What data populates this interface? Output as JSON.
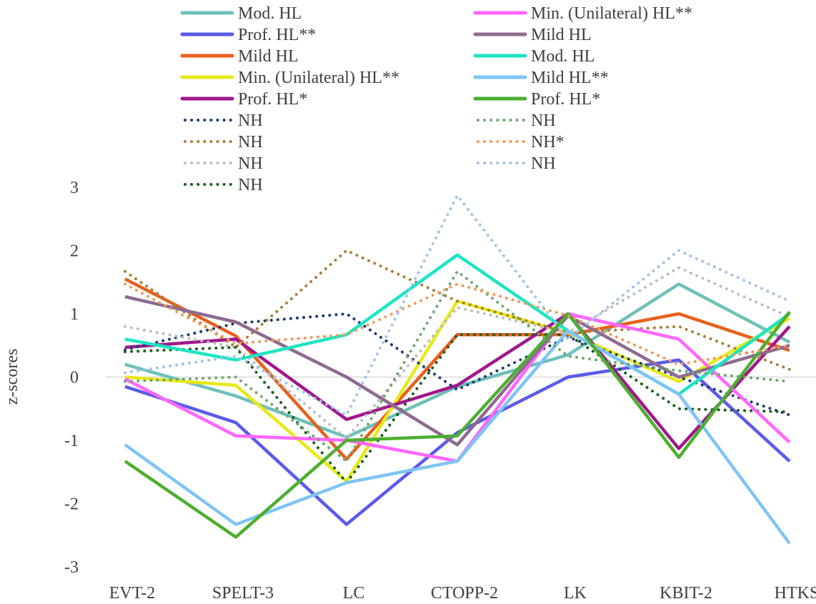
{
  "chart_data": {
    "type": "line",
    "title": "",
    "xlabel": "",
    "ylabel": "z-scores",
    "ylim": [
      -3,
      3
    ],
    "yticks": [
      "3",
      "2",
      "1",
      "0",
      "-1",
      "-2",
      "-3"
    ],
    "grid": false,
    "legend_position": "top",
    "categories": [
      "EVT-2",
      "SPELT-3",
      "LC",
      "CTOPP-2",
      "LK",
      "KBIT-2",
      "HTKS"
    ],
    "series": [
      {
        "name": "Mod. HL",
        "color": "#6FC0BA",
        "style": "solid",
        "values": [
          0.2,
          -0.3,
          -0.95,
          -0.15,
          0.35,
          1.47,
          0.55
        ]
      },
      {
        "name": "Prof. HL**",
        "color": "#5B5BE8",
        "style": "solid",
        "values": [
          -0.15,
          -0.72,
          -2.33,
          -0.88,
          0.0,
          0.27,
          -1.33
        ]
      },
      {
        "name": "Mild HL",
        "color": "#E8601C",
        "style": "solid",
        "values": [
          1.55,
          0.65,
          -1.3,
          0.67,
          0.67,
          1.0,
          0.42
        ]
      },
      {
        "name": "Min. (Unilateral) HL**",
        "color": "#E8E81C",
        "style": "solid",
        "values": [
          0.0,
          -0.13,
          -1.65,
          1.2,
          0.7,
          -0.07,
          0.93
        ]
      },
      {
        "name": "Prof. HL*",
        "color": "#A0178C",
        "style": "solid",
        "values": [
          0.47,
          0.6,
          -0.67,
          -0.13,
          1.0,
          -1.13,
          0.8
        ]
      },
      {
        "name": "NH",
        "color": "#1F3E6E",
        "style": "dotted",
        "values": [
          0.43,
          0.85,
          1.0,
          -0.2,
          0.63,
          0.0,
          -0.6
        ]
      },
      {
        "name": "NH",
        "color": "#A87E3C",
        "style": "dotted",
        "values": [
          1.67,
          0.47,
          2.0,
          1.2,
          0.7,
          0.8,
          0.12
        ]
      },
      {
        "name": "NH",
        "color": "#BEBEBE",
        "style": "dotted",
        "values": [
          0.8,
          0.47,
          -0.97,
          1.1,
          0.7,
          1.73,
          0.95
        ]
      },
      {
        "name": "NH",
        "color": "#1B5E20",
        "style": "dotted",
        "values": [
          0.4,
          0.47,
          -1.67,
          0.67,
          0.67,
          -0.5,
          -0.55
        ]
      },
      {
        "name": "Min. (Unilateral) HL**",
        "color": "#FF66FF",
        "style": "solid",
        "values": [
          -0.03,
          -0.93,
          -1.0,
          -1.33,
          1.0,
          0.6,
          -1.03
        ]
      },
      {
        "name": "Mild HL",
        "color": "#8E6B8E",
        "style": "solid",
        "values": [
          1.27,
          0.87,
          0.0,
          -1.07,
          0.97,
          0.0,
          0.5
        ]
      },
      {
        "name": "Mod. HL",
        "color": "#1DE5C3",
        "style": "solid",
        "values": [
          0.6,
          0.27,
          0.67,
          1.93,
          0.73,
          -0.27,
          1.0
        ]
      },
      {
        "name": "Mild HL**",
        "color": "#7FC4F5",
        "style": "solid",
        "values": [
          -1.07,
          -2.33,
          -1.67,
          -1.33,
          0.73,
          -0.27,
          -2.63
        ]
      },
      {
        "name": "Prof. HL*",
        "color": "#4CAF2E",
        "style": "solid",
        "values": [
          -1.33,
          -2.53,
          -1.0,
          -0.93,
          1.0,
          -1.27,
          1.03
        ]
      },
      {
        "name": "NH",
        "color": "#6FA86F",
        "style": "dotted",
        "values": [
          -0.07,
          0.0,
          -1.33,
          1.67,
          0.33,
          0.1,
          -0.07
        ]
      },
      {
        "name": "NH*",
        "color": "#F09A5A",
        "style": "dotted",
        "values": [
          1.47,
          0.53,
          0.67,
          1.47,
          0.97,
          0.2,
          0.5
        ]
      },
      {
        "name": "NH",
        "color": "#9EC5EA",
        "style": "dotted",
        "values": [
          0.07,
          0.33,
          -0.6,
          2.87,
          0.6,
          2.0,
          1.2
        ]
      }
    ]
  }
}
